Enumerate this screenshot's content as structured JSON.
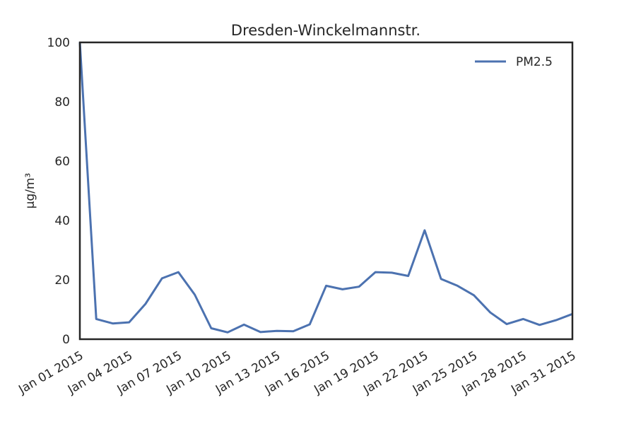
{
  "chart_data": {
    "type": "line",
    "title": "Dresden-Winckelmannstr.",
    "xlabel": "",
    "ylabel": "µg/m³",
    "x": [
      "2015-01-01",
      "2015-01-02",
      "2015-01-03",
      "2015-01-04",
      "2015-01-05",
      "2015-01-06",
      "2015-01-07",
      "2015-01-08",
      "2015-01-09",
      "2015-01-10",
      "2015-01-11",
      "2015-01-12",
      "2015-01-13",
      "2015-01-14",
      "2015-01-15",
      "2015-01-16",
      "2015-01-17",
      "2015-01-18",
      "2015-01-19",
      "2015-01-20",
      "2015-01-21",
      "2015-01-22",
      "2015-01-23",
      "2015-01-24",
      "2015-01-25",
      "2015-01-26",
      "2015-01-27",
      "2015-01-28",
      "2015-01-29",
      "2015-01-30",
      "2015-01-31"
    ],
    "xticks": [
      "Jan 01 2015",
      "Jan 04 2015",
      "Jan 07 2015",
      "Jan 10 2015",
      "Jan 13 2015",
      "Jan 16 2015",
      "Jan 19 2015",
      "Jan 22 2015",
      "Jan 25 2015",
      "Jan 28 2015",
      "Jan 31 2015"
    ],
    "xtick_dates": [
      "2015-01-01",
      "2015-01-04",
      "2015-01-07",
      "2015-01-10",
      "2015-01-13",
      "2015-01-16",
      "2015-01-19",
      "2015-01-22",
      "2015-01-25",
      "2015-01-28",
      "2015-01-31"
    ],
    "yticks": [
      0,
      20,
      40,
      60,
      80,
      100
    ],
    "ylim": [
      0,
      100
    ],
    "xlim": [
      "2015-01-01",
      "2015-01-31"
    ],
    "grid": false,
    "legend_position": "top-right",
    "series": [
      {
        "name": "PM2.5",
        "color": "#4c72b0",
        "values": [
          100,
          6.8,
          5.3,
          5.7,
          11.9,
          20.5,
          22.6,
          15.0,
          3.7,
          2.3,
          4.9,
          2.4,
          2.8,
          2.7,
          5.0,
          18.0,
          16.8,
          17.7,
          22.6,
          22.4,
          21.3,
          36.7,
          20.3,
          18.0,
          14.8,
          9.0,
          5.1,
          6.8,
          4.8,
          6.4,
          8.5
        ]
      }
    ]
  }
}
